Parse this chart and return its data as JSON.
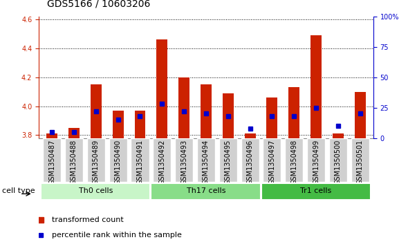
{
  "title": "GDS5166 / 10603206",
  "samples": [
    "GSM1350487",
    "GSM1350488",
    "GSM1350489",
    "GSM1350490",
    "GSM1350491",
    "GSM1350492",
    "GSM1350493",
    "GSM1350494",
    "GSM1350495",
    "GSM1350496",
    "GSM1350497",
    "GSM1350498",
    "GSM1350499",
    "GSM1350500",
    "GSM1350501"
  ],
  "bar_values": [
    3.81,
    3.85,
    4.15,
    3.97,
    3.97,
    4.46,
    4.2,
    4.15,
    4.09,
    3.81,
    4.06,
    4.13,
    4.49,
    3.81,
    4.1
  ],
  "percentile_values": [
    5,
    5,
    22,
    15,
    18,
    28,
    22,
    20,
    18,
    8,
    18,
    18,
    25,
    10,
    20
  ],
  "ylim_left": [
    3.78,
    4.62
  ],
  "ylim_right": [
    0,
    100
  ],
  "yticks_left": [
    3.8,
    4.0,
    4.2,
    4.4,
    4.6
  ],
  "yticks_right": [
    0,
    25,
    50,
    75,
    100
  ],
  "ytick_labels_right": [
    "0",
    "25",
    "50",
    "75",
    "100%"
  ],
  "bar_color": "#cc2200",
  "dot_color": "#0000cc",
  "bar_bottom": 3.78,
  "cell_groups": [
    {
      "label": "Th0 cells",
      "start": 0,
      "end": 5,
      "color": "#c8f5c8"
    },
    {
      "label": "Th17 cells",
      "start": 5,
      "end": 10,
      "color": "#88dd88"
    },
    {
      "label": "Tr1 cells",
      "start": 10,
      "end": 15,
      "color": "#44bb44"
    }
  ],
  "legend_entries": [
    {
      "label": "transformed count",
      "color": "#cc2200"
    },
    {
      "label": "percentile rank within the sample",
      "color": "#0000cc"
    }
  ],
  "cell_type_label": "cell type",
  "background_color": "#ffffff",
  "xticklabel_bg": "#d0d0d0",
  "tick_color_left": "#cc2200",
  "tick_color_right": "#0000cc",
  "title_fontsize": 10,
  "tick_fontsize": 7,
  "label_fontsize": 8,
  "bar_width": 0.5
}
